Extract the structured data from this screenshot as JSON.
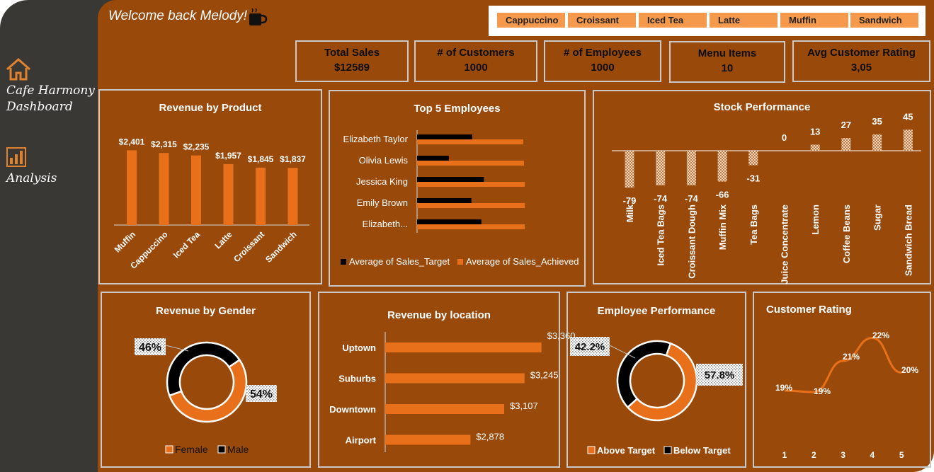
{
  "app": {
    "title": "Cafe Harmony Dashboard",
    "welcome": "Welcome back Melody!"
  },
  "sidebar": {
    "items": [
      {
        "label": "Cafe Harmony Dashboard",
        "icon": "home-icon"
      },
      {
        "label": "Analysis",
        "icon": "bar-chart-icon"
      }
    ]
  },
  "slicer": {
    "items": [
      "Cappuccino",
      "Croissant",
      "Iced Tea",
      "Latte",
      "Muffin",
      "Sandwich"
    ]
  },
  "kpis": [
    {
      "label": "Total Sales",
      "value": "$12589"
    },
    {
      "label": "# of Customers",
      "value": "1000"
    },
    {
      "label": "# of Employees",
      "value": "1000"
    },
    {
      "label": "Menu Items",
      "value": "10"
    },
    {
      "label": "Avg Customer Rating",
      "value": "3,05"
    }
  ],
  "colors": {
    "background": "#994a0b",
    "sidebar": "#3a3834",
    "accent_orange": "#e8701a",
    "black": "#000000",
    "border": "#c9c9c9"
  },
  "chart_data": [
    {
      "id": "revenue_by_product",
      "type": "bar",
      "title": "Revenue by Product",
      "categories": [
        "Muffin",
        "Cappuccino",
        "Iced Tea",
        "Latte",
        "Croissant",
        "Sandwich"
      ],
      "values": [
        2401,
        2315,
        2235,
        1957,
        1845,
        1837
      ],
      "data_labels": [
        "$2,401",
        "$2,315",
        "$2,235",
        "$1,957",
        "$1,845",
        "$1,837"
      ],
      "ylim": [
        0,
        2500
      ]
    },
    {
      "id": "top_employees",
      "type": "bar",
      "orientation": "horizontal",
      "title": "Top 5 Employees",
      "categories": [
        "Elizabeth Taylor",
        "Olivia Lewis",
        "Jessica King",
        "Emily Brown",
        "Elizabeth..."
      ],
      "series": [
        {
          "name": "Average of Sales_Target",
          "values": [
            3300,
            1900,
            4000,
            3250,
            3850
          ]
        },
        {
          "name": "Average of Sales_Achieved",
          "values": [
            6350,
            6400,
            6450,
            6450,
            6450
          ]
        }
      ],
      "legend": "bottom"
    },
    {
      "id": "stock_performance",
      "type": "bar",
      "title": "Stock Performance",
      "categories": [
        "Milk",
        "Iced Tea Bags",
        "Croissant Dough",
        "Muffin Mix",
        "Tea Bags",
        "Juice Concentrate",
        "Lemon",
        "Coffee Beans",
        "Sugar",
        "Sandwich Bread"
      ],
      "values": [
        -79,
        -74,
        -74,
        -66,
        -31,
        0,
        13,
        27,
        35,
        45
      ],
      "ylim": [
        -80,
        50
      ]
    },
    {
      "id": "revenue_by_gender",
      "type": "pie",
      "style": "donut",
      "title": "Revenue by Gender",
      "labels": [
        "Female",
        "Male"
      ],
      "values": [
        54,
        46
      ],
      "data_labels": [
        "54%",
        "46%"
      ],
      "legend": "bottom"
    },
    {
      "id": "revenue_by_location",
      "type": "bar",
      "orientation": "horizontal",
      "title": "Revenue by location",
      "categories": [
        "Uptown",
        "Suburbs",
        "Downtown",
        "Airport"
      ],
      "values": [
        3360,
        3245,
        3107,
        2878
      ],
      "data_labels": [
        "$3,360",
        "$3,245",
        "$3,107",
        "$2,878"
      ],
      "xlim": [
        2300,
        3400
      ]
    },
    {
      "id": "employee_performance",
      "type": "pie",
      "style": "donut",
      "title": "Employee Performance",
      "labels": [
        "Above Target",
        "Below Target"
      ],
      "values": [
        57.8,
        42.2
      ],
      "data_labels": [
        "57.8%",
        "42.2%"
      ],
      "legend": "bottom"
    },
    {
      "id": "customer_rating",
      "type": "line",
      "title": "Customer Rating",
      "x": [
        1,
        2,
        3,
        4,
        5
      ],
      "values": [
        19,
        19,
        21,
        22,
        20
      ],
      "data_labels": [
        "19%",
        "19%",
        "21%",
        "22%",
        "20%"
      ],
      "ylim": [
        17,
        23
      ]
    }
  ]
}
